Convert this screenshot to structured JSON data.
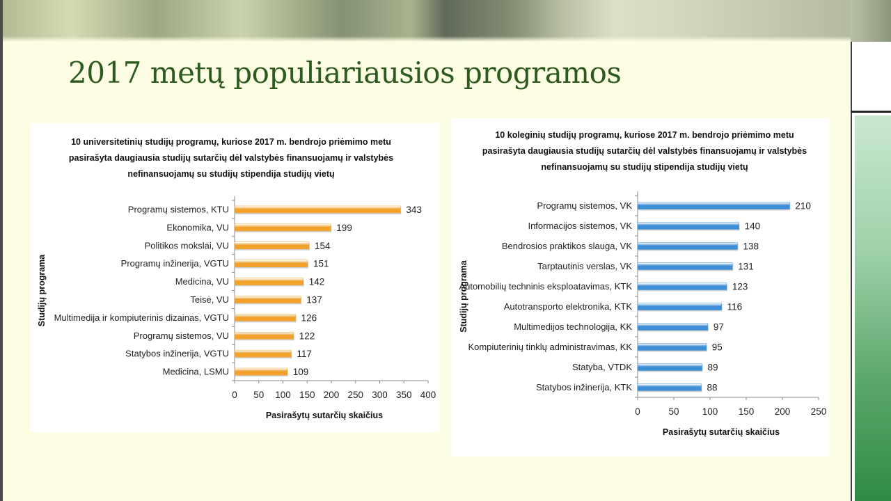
{
  "slide": {
    "title": "2017 metų populiariausios programos",
    "colors": {
      "title": "#2d5a1e",
      "background": "#fdfde4"
    }
  },
  "chart_data": [
    {
      "type": "bar",
      "orientation": "horizontal",
      "title_lines": [
        "10 universitetinių studijų programų, kuriose 2017 m. bendrojo priėmimo metu",
        "pasirašyta daugiausia studijų sutarčių dėl valstybės finansuojamų ir valstybės",
        "nefinansuojamų su studijų stipendija studijų vietų"
      ],
      "categories": [
        "Programų sistemos, KTU",
        "Ekonomika, VU",
        "Politikos mokslai, VU",
        "Programų inžinerija, VGTU",
        "Medicina, VU",
        "Teisė, VU",
        "Multimedija ir kompiuterinis dizainas, VGTU",
        "Programų sistemos, VU",
        "Statybos inžinerija, VGTU",
        "Medicina, LSMU"
      ],
      "values": [
        343,
        199,
        154,
        151,
        142,
        137,
        126,
        122,
        117,
        109
      ],
      "data_labels": [
        "343",
        "199",
        "154",
        "151",
        "142",
        "137",
        "126",
        "122",
        "117",
        "109"
      ],
      "xlim": [
        0,
        400
      ],
      "x_ticks": [
        "0",
        "50",
        "100",
        "150",
        "200",
        "250",
        "300",
        "350",
        "400"
      ],
      "xlabel": "Pasirašytų sutarčių skaičius",
      "ylabel": "Studijų programa",
      "bar_color": "#f2a22a",
      "grid": false
    },
    {
      "type": "bar",
      "orientation": "horizontal",
      "title_lines": [
        "10 koleginių studijų programų, kuriose 2017 m. bendrojo priėmimo metu",
        "pasirašyta daugiausia studijų sutarčių dėl valstybės finansuojamų ir valstybės",
        "nefinansuojamų su studijų stipendija studijų vietų"
      ],
      "categories": [
        "Programų sistemos, VK",
        "Informacijos sistemos, VK",
        "Bendrosios praktikos slauga, VK",
        "Tarptautinis verslas, VK",
        "Automobilių techninis eksploatavimas, KTK",
        "Autotransporto elektronika, KTK",
        "Multimedijos technologija, KK",
        "Kompiuterinių tinklų administravimas, KK",
        "Statyba, VTDK",
        "Statybos inžinerija, KTK"
      ],
      "values": [
        210,
        140,
        138,
        131,
        123,
        116,
        97,
        95,
        89,
        88
      ],
      "data_labels": [
        "210",
        "140",
        "138",
        "131",
        "123",
        "116",
        "97",
        "95",
        "89",
        "88"
      ],
      "xlim": [
        0,
        250
      ],
      "x_ticks": [
        "0",
        "50",
        "100",
        "150",
        "200",
        "250"
      ],
      "xlabel": "Pasirašytų sutarčių skaičius",
      "ylabel": "Studijų programa",
      "bar_color": "#3e8fd6",
      "grid": false
    }
  ]
}
